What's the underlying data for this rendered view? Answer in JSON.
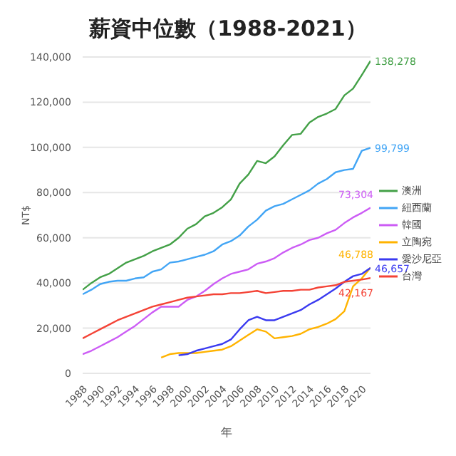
{
  "chart_data": {
    "type": "line",
    "title": "薪資中位數（1988-2021）",
    "xlabel": "年",
    "ylabel": "NT$",
    "x": [
      1988,
      1989,
      1990,
      1991,
      1992,
      1993,
      1994,
      1995,
      1996,
      1997,
      1998,
      1999,
      2000,
      2001,
      2002,
      2003,
      2004,
      2005,
      2006,
      2007,
      2008,
      2009,
      2010,
      2011,
      2012,
      2013,
      2014,
      2015,
      2016,
      2017,
      2018,
      2019,
      2020,
      2021
    ],
    "xlim": [
      1988,
      2021
    ],
    "xticks": [
      1988,
      1990,
      1992,
      1994,
      1996,
      1998,
      2000,
      2002,
      2004,
      2006,
      2008,
      2010,
      2012,
      2014,
      2016,
      2018,
      2020
    ],
    "ylim": [
      0,
      140000
    ],
    "yticks": [
      {
        "value": 0,
        "label": "0"
      },
      {
        "value": 20000,
        "label": "20,000"
      },
      {
        "value": 40000,
        "label": "40,000"
      },
      {
        "value": 60000,
        "label": "60,000"
      },
      {
        "value": 80000,
        "label": "80,000"
      },
      {
        "value": 100000,
        "label": "100,000"
      },
      {
        "value": 120000,
        "label": "120,000"
      },
      {
        "value": 140000,
        "label": "140,000"
      }
    ],
    "grid": "y",
    "legend": "right",
    "marker": "none",
    "line_style": "solid",
    "series": [
      {
        "name": "澳洲",
        "color": "#43a047",
        "values": [
          37000,
          40000,
          42500,
          44000,
          46500,
          49000,
          50500,
          52000,
          54000,
          55500,
          57000,
          60000,
          64000,
          66000,
          69500,
          71000,
          73500,
          77000,
          84000,
          88000,
          94000,
          93000,
          96000,
          101000,
          105500,
          106000,
          111000,
          113500,
          115000,
          117000,
          123000,
          126000,
          132000,
          138278
        ],
        "value_labels": [
          null,
          null,
          null,
          null,
          null,
          null,
          null,
          null,
          null,
          null,
          null,
          null,
          null,
          null,
          null,
          null,
          null,
          null,
          null,
          null,
          null,
          null,
          null,
          null,
          null,
          null,
          null,
          null,
          null,
          null,
          null,
          null,
          null,
          "138,278"
        ]
      },
      {
        "name": "紐西蘭",
        "color": "#42a5f5",
        "values": [
          35000,
          37000,
          39500,
          40500,
          41000,
          41000,
          42000,
          42500,
          45000,
          46000,
          49000,
          49500,
          50500,
          51500,
          52500,
          54000,
          57000,
          58500,
          61000,
          65000,
          68000,
          72000,
          74000,
          75000,
          77000,
          79000,
          81000,
          84000,
          86000,
          89000,
          90000,
          90500,
          98500,
          99799
        ],
        "value_labels": [
          null,
          null,
          null,
          null,
          null,
          null,
          null,
          null,
          null,
          null,
          null,
          null,
          null,
          null,
          null,
          null,
          null,
          null,
          null,
          null,
          null,
          null,
          null,
          null,
          null,
          null,
          null,
          null,
          null,
          null,
          null,
          null,
          null,
          "99,799"
        ]
      },
      {
        "name": "韓國",
        "color": "#cc5cf5",
        "values": [
          8500,
          10000,
          12000,
          14000,
          16000,
          18500,
          21000,
          24000,
          27000,
          29500,
          29500,
          29500,
          32500,
          34000,
          36500,
          39500,
          42000,
          44000,
          45000,
          46000,
          48500,
          49500,
          51000,
          53500,
          55500,
          57000,
          59000,
          60000,
          62000,
          63500,
          66500,
          69000,
          71000,
          73304
        ],
        "value_labels": [
          null,
          null,
          null,
          null,
          null,
          null,
          null,
          null,
          null,
          null,
          null,
          null,
          null,
          null,
          null,
          null,
          null,
          null,
          null,
          null,
          null,
          null,
          null,
          null,
          null,
          null,
          null,
          null,
          null,
          null,
          null,
          null,
          null,
          "73,304"
        ]
      },
      {
        "name": "立陶宛",
        "color": "#ffb300",
        "values": [
          null,
          null,
          null,
          null,
          null,
          null,
          null,
          null,
          null,
          7000,
          8500,
          9000,
          9000,
          9000,
          9500,
          10000,
          10500,
          12000,
          14500,
          17000,
          19500,
          18500,
          15500,
          16000,
          16500,
          17500,
          19500,
          20500,
          22000,
          24000,
          27500,
          38500,
          42000,
          46788
        ],
        "value_labels": [
          null,
          null,
          null,
          null,
          null,
          null,
          null,
          null,
          null,
          null,
          null,
          null,
          null,
          null,
          null,
          null,
          null,
          null,
          null,
          null,
          null,
          null,
          null,
          null,
          null,
          null,
          null,
          null,
          null,
          null,
          null,
          null,
          null,
          "46,788"
        ]
      },
      {
        "name": "愛沙尼亞",
        "color": "#3a3af0",
        "values": [
          null,
          null,
          null,
          null,
          null,
          null,
          null,
          null,
          null,
          null,
          null,
          8000,
          8500,
          10000,
          11000,
          12000,
          13000,
          15000,
          19500,
          23500,
          25000,
          23500,
          23500,
          25000,
          26500,
          28000,
          30500,
          32500,
          35000,
          37500,
          40500,
          43000,
          44000,
          46657
        ],
        "value_labels": [
          null,
          null,
          null,
          null,
          null,
          null,
          null,
          null,
          null,
          null,
          null,
          null,
          null,
          null,
          null,
          null,
          null,
          null,
          null,
          null,
          null,
          null,
          null,
          null,
          null,
          null,
          null,
          null,
          null,
          null,
          null,
          null,
          null,
          "46,657"
        ]
      },
      {
        "name": "台灣",
        "color": "#f44336",
        "values": [
          15500,
          17500,
          19500,
          21500,
          23500,
          25000,
          26500,
          28000,
          29500,
          30500,
          31500,
          32500,
          33500,
          34000,
          34500,
          35000,
          35000,
          35500,
          35500,
          36000,
          36500,
          35500,
          36000,
          36500,
          36500,
          37000,
          37000,
          38000,
          38500,
          39000,
          40500,
          41000,
          41500,
          42167
        ],
        "value_labels": [
          null,
          null,
          null,
          null,
          null,
          null,
          null,
          null,
          null,
          null,
          null,
          null,
          null,
          null,
          null,
          null,
          null,
          null,
          null,
          null,
          null,
          null,
          null,
          null,
          null,
          null,
          null,
          null,
          null,
          null,
          null,
          null,
          null,
          "42,167"
        ]
      }
    ]
  }
}
